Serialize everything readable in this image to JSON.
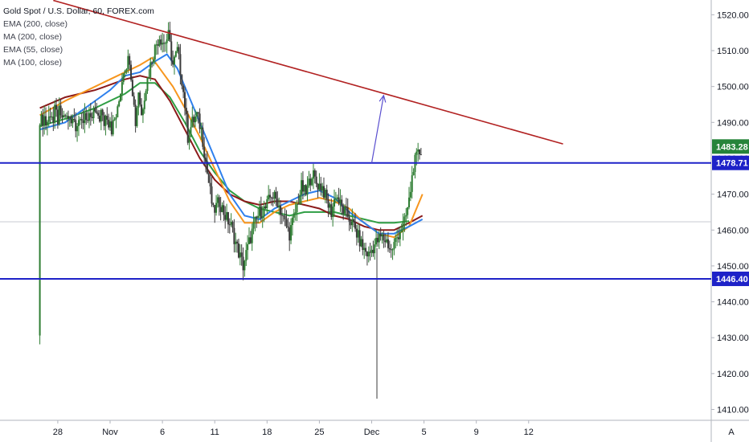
{
  "chart_data": {
    "type": "candlestick",
    "title": "Gold Spot / U.S. Dollar, 60, FOREX.com",
    "indicators": [
      "EMA (200, close)",
      "MA (200, close)",
      "EMA (55, close)",
      "MA (100, close)"
    ],
    "ylim": [
      1407,
      1525
    ],
    "y_ticks": [
      1410,
      1420,
      1430,
      1440,
      1450,
      1460,
      1470,
      1480,
      1490,
      1500,
      1510,
      1520
    ],
    "y_tick_labels": [
      "1410.00",
      "1420.00",
      "1430.00",
      "1440.00",
      "1450.00",
      "1460.00",
      "1470.00",
      "1480.00",
      "1490.00",
      "1500.00",
      "1510.00",
      "1520.00"
    ],
    "x_day_range": [
      -4.7,
      15.6
    ],
    "x_ticks": [
      {
        "day": -3.5,
        "label": "28"
      },
      {
        "day": 0,
        "label": "Nov"
      },
      {
        "day": 3.5,
        "label": "6"
      },
      {
        "day": 7,
        "label": "11"
      },
      {
        "day": 10.5,
        "label": "18"
      },
      {
        "day": 14,
        "label": "25"
      },
      {
        "day": 17.5,
        "label": "Dec"
      },
      {
        "day": 21,
        "label": "5"
      },
      {
        "day": 24.5,
        "label": "9"
      },
      {
        "day": 28,
        "label": "12"
      }
    ],
    "horizontal_levels": [
      {
        "value": 1478.71,
        "label": "1478.71",
        "color": "#1e22c8"
      },
      {
        "value": 1446.4,
        "label": "1446.40",
        "color": "#1e22c8"
      }
    ],
    "last_price": {
      "value": 1483.28,
      "label": "1483.28",
      "color": "#26843a"
    },
    "trendline": {
      "from": [
        -3.8,
        1524
      ],
      "to": [
        30.3,
        1484
      ],
      "color": "#b22222"
    },
    "projection_arrow": {
      "from": [
        17.5,
        1478.7
      ],
      "to": [
        18.3,
        1497.5
      ],
      "color": "#5a4fcf"
    },
    "price_path": [
      [
        0,
        1487
      ],
      [
        0.5,
        1493
      ],
      [
        0.9,
        1505
      ],
      [
        1.3,
        1508
      ],
      [
        1.5,
        1499
      ],
      [
        1.7,
        1490
      ],
      [
        1.9,
        1499
      ],
      [
        2.1,
        1492
      ],
      [
        2.3,
        1498
      ],
      [
        2.6,
        1504
      ],
      [
        2.8,
        1508
      ],
      [
        3.1,
        1512
      ],
      [
        3.3,
        1514
      ],
      [
        3.6,
        1512
      ],
      [
        3.9,
        1514
      ],
      [
        4.2,
        1506
      ],
      [
        4.5,
        1510
      ],
      [
        4.8,
        1502
      ],
      [
        5.0,
        1495
      ],
      [
        5.2,
        1486
      ],
      [
        5.5,
        1490
      ],
      [
        5.8,
        1492
      ],
      [
        6.1,
        1488
      ],
      [
        6.5,
        1476
      ],
      [
        6.9,
        1465
      ],
      [
        7.3,
        1468
      ],
      [
        7.7,
        1464
      ],
      [
        8.1,
        1461
      ],
      [
        8.5,
        1455
      ],
      [
        8.9,
        1450
      ],
      [
        9.2,
        1455
      ],
      [
        9.6,
        1461
      ],
      [
        10.0,
        1465
      ],
      [
        10.4,
        1466
      ],
      [
        10.8,
        1470
      ],
      [
        11.2,
        1468
      ],
      [
        11.6,
        1463
      ],
      [
        12.0,
        1459
      ],
      [
        12.4,
        1465
      ],
      [
        12.8,
        1472
      ],
      [
        13.1,
        1470
      ],
      [
        13.5,
        1476
      ],
      [
        13.8,
        1473
      ],
      [
        14.2,
        1472
      ],
      [
        14.5,
        1468
      ],
      [
        14.8,
        1465
      ],
      [
        15.1,
        1470
      ],
      [
        15.5,
        1466
      ],
      [
        15.9,
        1464
      ],
      [
        16.3,
        1461
      ],
      [
        16.6,
        1458
      ],
      [
        16.9,
        1455
      ],
      [
        17.3,
        1453
      ],
      [
        17.7,
        1456
      ],
      [
        18.1,
        1458
      ],
      [
        18.5,
        1457
      ],
      [
        18.8,
        1454
      ],
      [
        19.1,
        1457
      ],
      [
        19.4,
        1460
      ],
      [
        19.7,
        1462
      ],
      [
        20.0,
        1468
      ],
      [
        20.3,
        1478
      ],
      [
        20.6,
        1481
      ],
      [
        20.9,
        1483
      ]
    ],
    "wick_low": {
      "day": 17.85,
      "low": 1413
    },
    "series": [
      {
        "name": "EMA (200, close)",
        "color": "#2f9e44",
        "points": [
          [
            -4.7,
            1489
          ],
          [
            -3,
            1491
          ],
          [
            -1,
            1494
          ],
          [
            1,
            1498
          ],
          [
            2,
            1501
          ],
          [
            3,
            1501
          ],
          [
            4,
            1497
          ],
          [
            5,
            1490
          ],
          [
            6,
            1482
          ],
          [
            7,
            1476
          ],
          [
            8,
            1471
          ],
          [
            9,
            1468
          ],
          [
            10,
            1466
          ],
          [
            11,
            1465
          ],
          [
            12,
            1464
          ],
          [
            13,
            1465
          ],
          [
            14,
            1465
          ],
          [
            15,
            1465
          ],
          [
            16,
            1464
          ],
          [
            17,
            1463
          ],
          [
            18,
            1462
          ],
          [
            19,
            1462
          ],
          [
            20,
            1462.5
          ]
        ]
      },
      {
        "name": "MA (200, close)",
        "color": "#8b1a1a",
        "points": [
          [
            -4.7,
            1494
          ],
          [
            -3,
            1497
          ],
          [
            -1,
            1499
          ],
          [
            1,
            1502
          ],
          [
            2,
            1503
          ],
          [
            3,
            1502
          ],
          [
            4,
            1496
          ],
          [
            5,
            1488
          ],
          [
            6,
            1480
          ],
          [
            7,
            1474
          ],
          [
            8,
            1470
          ],
          [
            9,
            1468
          ],
          [
            10,
            1467
          ],
          [
            11,
            1468
          ],
          [
            12,
            1468
          ],
          [
            13,
            1467
          ],
          [
            14,
            1466
          ],
          [
            15,
            1464
          ],
          [
            16,
            1463
          ],
          [
            17,
            1461
          ],
          [
            18,
            1460
          ],
          [
            19,
            1460
          ],
          [
            20,
            1462
          ],
          [
            20.9,
            1464
          ]
        ]
      },
      {
        "name": "EMA (55, close)",
        "color": "#f7961e",
        "points": [
          [
            -4.7,
            1492
          ],
          [
            -3,
            1496
          ],
          [
            -2,
            1498
          ],
          [
            -1,
            1500
          ],
          [
            0,
            1502
          ],
          [
            1,
            1504
          ],
          [
            2,
            1506
          ],
          [
            2.8,
            1508
          ],
          [
            3.5,
            1504
          ],
          [
            4.2,
            1500
          ],
          [
            5,
            1494
          ],
          [
            6,
            1486
          ],
          [
            7,
            1477
          ],
          [
            8,
            1468
          ],
          [
            9,
            1462
          ],
          [
            10,
            1462
          ],
          [
            11,
            1465
          ],
          [
            12,
            1467
          ],
          [
            13,
            1468
          ],
          [
            14,
            1469
          ],
          [
            15,
            1468
          ],
          [
            16,
            1466
          ],
          [
            17,
            1462
          ],
          [
            18,
            1459
          ],
          [
            19,
            1458
          ],
          [
            20,
            1461
          ],
          [
            20.9,
            1470
          ]
        ]
      },
      {
        "name": "MA (100, close)",
        "color": "#2f80ed",
        "points": [
          [
            -4.7,
            1488
          ],
          [
            -3,
            1490
          ],
          [
            -2,
            1493
          ],
          [
            -1,
            1496
          ],
          [
            0,
            1499
          ],
          [
            1,
            1503
          ],
          [
            2,
            1504
          ],
          [
            3,
            1507
          ],
          [
            3.8,
            1509
          ],
          [
            4.5,
            1505
          ],
          [
            5,
            1500
          ],
          [
            6,
            1490
          ],
          [
            7,
            1480
          ],
          [
            8,
            1470
          ],
          [
            9,
            1464
          ],
          [
            10,
            1463
          ],
          [
            11,
            1466
          ],
          [
            12,
            1468
          ],
          [
            13,
            1470
          ],
          [
            14,
            1471
          ],
          [
            15,
            1469
          ],
          [
            16,
            1465
          ],
          [
            17,
            1462
          ],
          [
            18,
            1459
          ],
          [
            19,
            1459
          ],
          [
            20,
            1461
          ],
          [
            20.9,
            1463
          ]
        ]
      }
    ]
  },
  "ui": {
    "title": "Gold Spot / U.S. Dollar, 60, FOREX.com",
    "legend": [
      "EMA (200, close)",
      "MA (200, close)",
      "EMA (55, close)",
      "MA (100, close)"
    ],
    "autoscale_label": "A"
  }
}
